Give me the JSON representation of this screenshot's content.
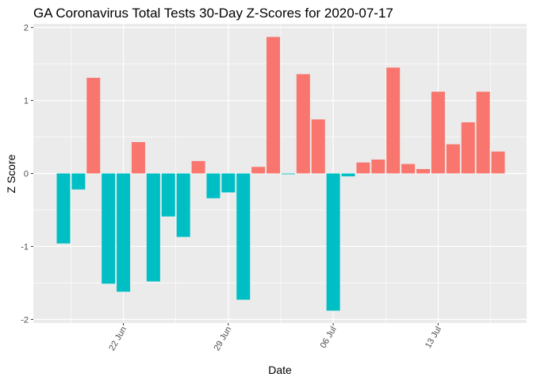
{
  "chart_data": {
    "type": "bar",
    "title": "GA Coronavirus Total Tests 30-Day Z-Scores for 2020-07-17",
    "xlabel": "Date",
    "ylabel": "Z Score",
    "x_tick_labels": [
      "22 Jun",
      "29 Jun",
      "06 Jul",
      "13 Jul"
    ],
    "y_tick_labels": [
      "-2",
      "-1",
      "0",
      "1",
      "2"
    ],
    "ylim": [
      -2.05,
      2.05
    ],
    "grid": true,
    "legend": "none",
    "colors": {
      "positive": "#F8766D",
      "negative": "#00BFC4",
      "panel": "#EBEBEB",
      "grid": "#FFFFFF"
    },
    "x": [
      "2020-06-18",
      "2020-06-19",
      "2020-06-20",
      "2020-06-21",
      "2020-06-22",
      "2020-06-23",
      "2020-06-24",
      "2020-06-25",
      "2020-06-26",
      "2020-06-27",
      "2020-06-28",
      "2020-06-29",
      "2020-06-30",
      "2020-07-01",
      "2020-07-02",
      "2020-07-03",
      "2020-07-04",
      "2020-07-05",
      "2020-07-06",
      "2020-07-07",
      "2020-07-08",
      "2020-07-09",
      "2020-07-10",
      "2020-07-11",
      "2020-07-12",
      "2020-07-13",
      "2020-07-14",
      "2020-07-15",
      "2020-07-16",
      "2020-07-17"
    ],
    "values": [
      -0.96,
      -0.22,
      1.31,
      -1.51,
      -1.62,
      0.43,
      -1.48,
      -0.59,
      -0.87,
      0.17,
      -0.34,
      -0.26,
      -1.73,
      0.09,
      1.87,
      -0.01,
      1.36,
      0.74,
      -1.88,
      -0.04,
      0.15,
      0.19,
      1.45,
      0.13,
      0.06,
      1.12,
      0.4,
      0.7,
      1.12,
      0.3
    ]
  }
}
